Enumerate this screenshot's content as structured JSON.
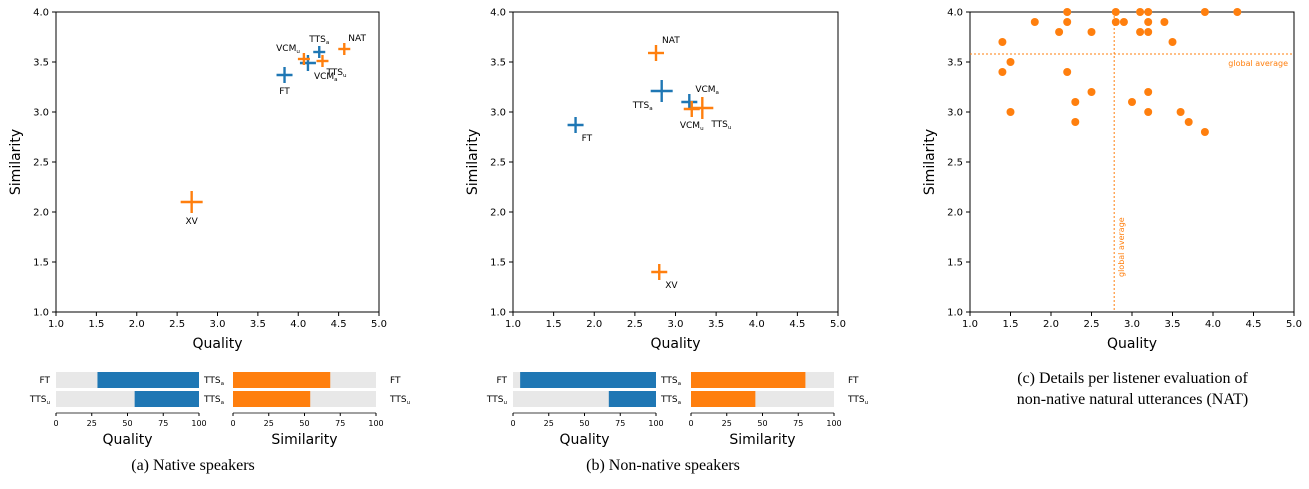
{
  "colors": {
    "blue": "#1f77b4",
    "orange": "#ff7f0e",
    "bar_bg": "#e8e8e8"
  },
  "captions": {
    "a": "(a) Native speakers",
    "b": "(b) Non-native speakers",
    "c_line1": "(c) Details per listener evaluation of",
    "c_line2": "non-native natural utterances (NAT)"
  },
  "chart_data": [
    {
      "id": "a-scatter",
      "type": "scatter",
      "xlabel": "Quality",
      "ylabel": "Similarity",
      "xlim": [
        1.0,
        5.0
      ],
      "ylim": [
        1.0,
        4.0
      ],
      "xticks": [
        "1.0",
        "1.5",
        "2.0",
        "2.5",
        "3.0",
        "3.5",
        "4.0",
        "4.5",
        "5.0"
      ],
      "yticks": [
        "1.0",
        "1.5",
        "2.0",
        "2.5",
        "3.0",
        "3.5",
        "4.0"
      ],
      "grid": false,
      "points": [
        {
          "label": "FT",
          "sub": "",
          "x": 3.83,
          "y": 3.37,
          "color": "blue",
          "size": "medium",
          "lpos": "below"
        },
        {
          "label": "VCM",
          "sub": "a",
          "x": 4.12,
          "y": 3.49,
          "color": "blue",
          "size": "medium",
          "lpos": "below-right"
        },
        {
          "label": "TTS",
          "sub": "a",
          "x": 4.26,
          "y": 3.6,
          "color": "blue",
          "size": "small",
          "lpos": "above"
        },
        {
          "label": "VCM",
          "sub": "u",
          "x": 4.07,
          "y": 3.53,
          "color": "orange",
          "size": "small",
          "lpos": "above-left"
        },
        {
          "label": "TTS",
          "sub": "u",
          "x": 4.3,
          "y": 3.51,
          "color": "orange",
          "size": "small",
          "lpos": "below-right"
        },
        {
          "label": "NAT",
          "sub": "",
          "x": 4.57,
          "y": 3.63,
          "color": "orange",
          "size": "small",
          "lpos": "above-right"
        },
        {
          "label": "XV",
          "sub": "",
          "x": 2.68,
          "y": 2.1,
          "color": "orange",
          "size": "large",
          "lpos": "below"
        }
      ]
    },
    {
      "id": "a-bars",
      "type": "bar",
      "xlim": [
        0,
        100
      ],
      "xticks": [
        "0",
        "25",
        "50",
        "75",
        "100"
      ],
      "left_xlabel": "Quality",
      "right_xlabel": "Similarity",
      "left_labels": [
        {
          "t": "FT",
          "s": ""
        },
        {
          "t": "TTS",
          "s": "u"
        }
      ],
      "mid_labels": [
        {
          "t": "TTS",
          "s": "a"
        },
        {
          "t": "TTS",
          "s": "a"
        }
      ],
      "right_labels": [
        {
          "t": "FT",
          "s": ""
        },
        {
          "t": "TTS",
          "s": "u"
        }
      ],
      "quality_values": [
        71,
        45
      ],
      "similarity_values": [
        68,
        54
      ]
    },
    {
      "id": "b-scatter",
      "type": "scatter",
      "xlabel": "Quality",
      "ylabel": "Similarity",
      "xlim": [
        1.0,
        5.0
      ],
      "ylim": [
        1.0,
        4.0
      ],
      "xticks": [
        "1.0",
        "1.5",
        "2.0",
        "2.5",
        "3.0",
        "3.5",
        "4.0",
        "4.5",
        "5.0"
      ],
      "yticks": [
        "1.0",
        "1.5",
        "2.0",
        "2.5",
        "3.0",
        "3.5",
        "4.0"
      ],
      "grid": false,
      "points": [
        {
          "label": "FT",
          "sub": "",
          "x": 1.77,
          "y": 2.87,
          "color": "blue",
          "size": "medium",
          "lpos": "below-right"
        },
        {
          "label": "TTS",
          "sub": "a",
          "x": 2.83,
          "y": 3.21,
          "color": "blue",
          "size": "large",
          "lpos": "below-left"
        },
        {
          "label": "VCM",
          "sub": "a",
          "x": 3.17,
          "y": 3.1,
          "color": "blue",
          "size": "medium",
          "lpos": "above-right"
        },
        {
          "label": "NAT",
          "sub": "",
          "x": 2.76,
          "y": 3.59,
          "color": "orange",
          "size": "medium",
          "lpos": "above-right"
        },
        {
          "label": "VCM",
          "sub": "u",
          "x": 3.2,
          "y": 3.03,
          "color": "orange",
          "size": "medium",
          "lpos": "below"
        },
        {
          "label": "TTS",
          "sub": "u",
          "x": 3.33,
          "y": 3.04,
          "color": "orange",
          "size": "large",
          "lpos": "below-right"
        },
        {
          "label": "XV",
          "sub": "",
          "x": 2.8,
          "y": 1.4,
          "color": "orange",
          "size": "medium",
          "lpos": "below-right"
        }
      ]
    },
    {
      "id": "b-bars",
      "type": "bar",
      "xlim": [
        0,
        100
      ],
      "xticks": [
        "0",
        "25",
        "50",
        "75",
        "100"
      ],
      "left_xlabel": "Quality",
      "right_xlabel": "Similarity",
      "left_labels": [
        {
          "t": "FT",
          "s": ""
        },
        {
          "t": "TTS",
          "s": "u"
        }
      ],
      "mid_labels": [
        {
          "t": "TTS",
          "s": "a"
        },
        {
          "t": "TTS",
          "s": "a"
        }
      ],
      "right_labels": [
        {
          "t": "FT",
          "s": ""
        },
        {
          "t": "TTS",
          "s": "u"
        }
      ],
      "quality_values": [
        95,
        33
      ],
      "similarity_values": [
        80,
        45
      ]
    },
    {
      "id": "c-scatter",
      "type": "scatter",
      "xlabel": "Quality",
      "ylabel": "Similarity",
      "xlim": [
        1.0,
        5.0
      ],
      "ylim": [
        1.0,
        4.0
      ],
      "xticks": [
        "1.0",
        "1.5",
        "2.0",
        "2.5",
        "3.0",
        "3.5",
        "4.0",
        "4.5",
        "5.0"
      ],
      "yticks": [
        "1.0",
        "1.5",
        "2.0",
        "2.5",
        "3.0",
        "3.5",
        "4.0"
      ],
      "grid": false,
      "global_average": {
        "x": 2.78,
        "y": 3.58,
        "label": "global average"
      },
      "points": [
        {
          "x": 2.2,
          "y": 4.0
        },
        {
          "x": 2.8,
          "y": 4.0
        },
        {
          "x": 3.1,
          "y": 4.0
        },
        {
          "x": 3.2,
          "y": 4.0
        },
        {
          "x": 3.9,
          "y": 4.0
        },
        {
          "x": 4.3,
          "y": 4.0
        },
        {
          "x": 1.8,
          "y": 3.9
        },
        {
          "x": 2.2,
          "y": 3.9
        },
        {
          "x": 2.8,
          "y": 3.9
        },
        {
          "x": 2.9,
          "y": 3.9
        },
        {
          "x": 3.2,
          "y": 3.9
        },
        {
          "x": 3.4,
          "y": 3.9
        },
        {
          "x": 2.1,
          "y": 3.8
        },
        {
          "x": 2.5,
          "y": 3.8
        },
        {
          "x": 3.1,
          "y": 3.8
        },
        {
          "x": 3.2,
          "y": 3.8
        },
        {
          "x": 1.4,
          "y": 3.7
        },
        {
          "x": 3.5,
          "y": 3.7
        },
        {
          "x": 1.5,
          "y": 3.5
        },
        {
          "x": 1.4,
          "y": 3.4
        },
        {
          "x": 2.2,
          "y": 3.4
        },
        {
          "x": 2.5,
          "y": 3.2
        },
        {
          "x": 3.2,
          "y": 3.2
        },
        {
          "x": 2.3,
          "y": 3.1
        },
        {
          "x": 3.0,
          "y": 3.1
        },
        {
          "x": 1.5,
          "y": 3.0
        },
        {
          "x": 3.2,
          "y": 3.0
        },
        {
          "x": 3.6,
          "y": 3.0
        },
        {
          "x": 2.3,
          "y": 2.9
        },
        {
          "x": 3.7,
          "y": 2.9
        },
        {
          "x": 3.9,
          "y": 2.8
        }
      ]
    }
  ]
}
